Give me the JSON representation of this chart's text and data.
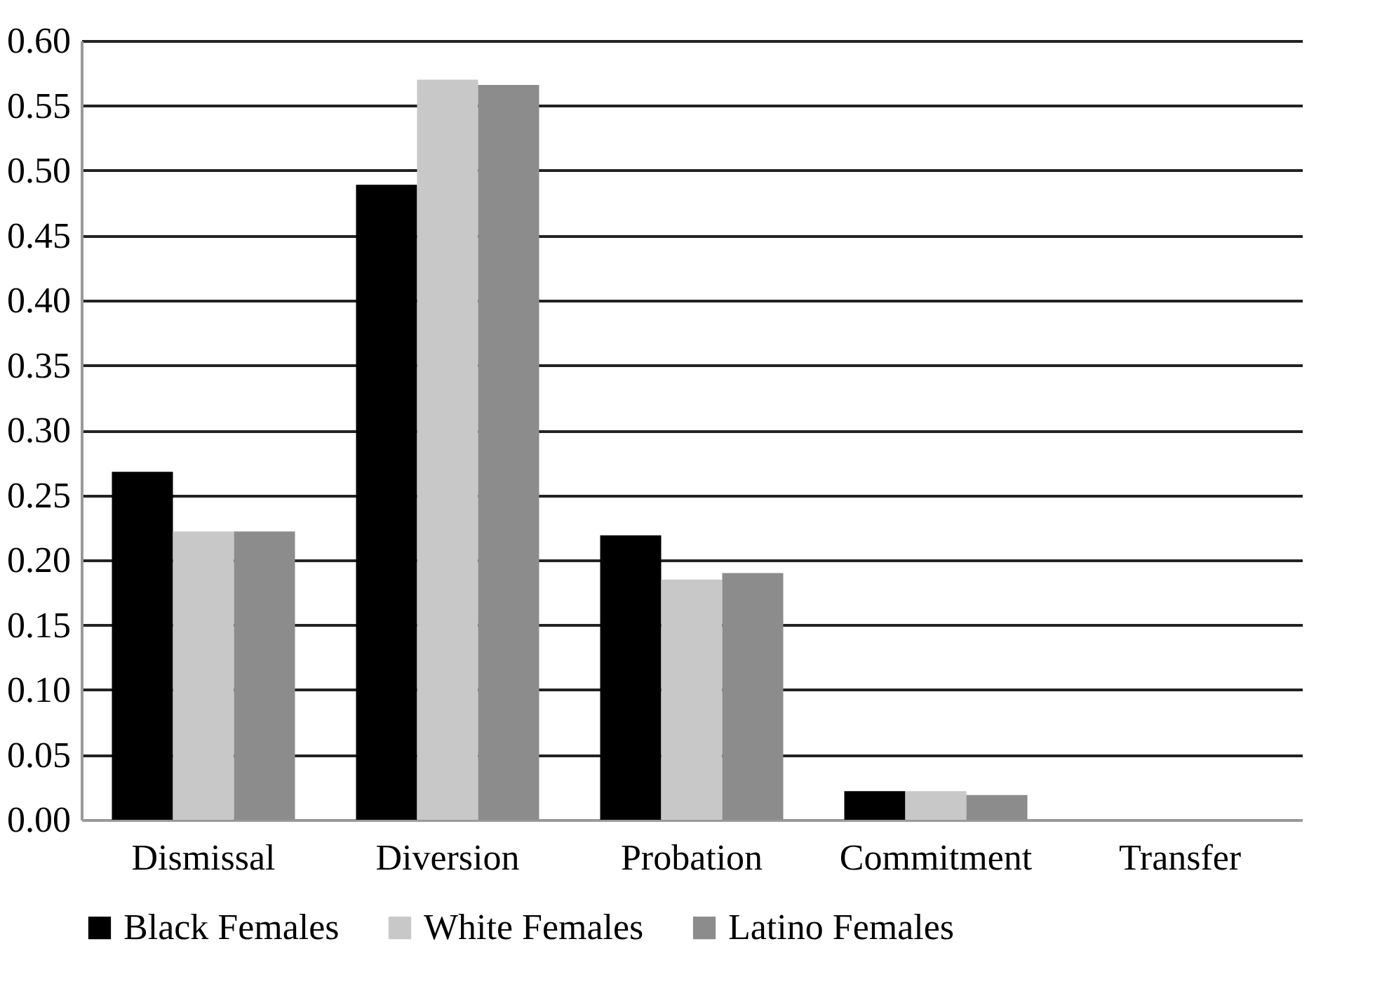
{
  "chart_data": {
    "type": "bar",
    "categories": [
      "Dismissal",
      "Diversion",
      "Probation",
      "Commitment",
      "Transfer"
    ],
    "series": [
      {
        "name": "Black Females",
        "color": "#000000",
        "values": [
          0.268,
          0.489,
          0.219,
          0.022,
          0
        ]
      },
      {
        "name": "White Females",
        "color": "#c8c8c8",
        "values": [
          0.222,
          0.57,
          0.185,
          0.022,
          0
        ]
      },
      {
        "name": "Latino Females",
        "color": "#8c8c8c",
        "values": [
          0.222,
          0.566,
          0.19,
          0.019,
          0
        ]
      }
    ],
    "ylim": [
      0,
      0.6
    ],
    "yticks": [
      {
        "value": 0,
        "label": "0.00"
      },
      {
        "value": 0.05,
        "label": "0.05"
      },
      {
        "value": 0.1,
        "label": "0.10"
      },
      {
        "value": 0.15,
        "label": "0.15"
      },
      {
        "value": 0.2,
        "label": "0.20"
      },
      {
        "value": 0.25,
        "label": "0.25"
      },
      {
        "value": 0.3,
        "label": "0.30"
      },
      {
        "value": 0.35,
        "label": "0.35"
      },
      {
        "value": 0.4,
        "label": "0.40"
      },
      {
        "value": 0.45,
        "label": "0.45"
      },
      {
        "value": 0.5,
        "label": "0.50"
      },
      {
        "value": 0.55,
        "label": "0.55"
      },
      {
        "value": 0.6,
        "label": "0.60"
      }
    ],
    "grid": "y",
    "legend": "bottom"
  }
}
